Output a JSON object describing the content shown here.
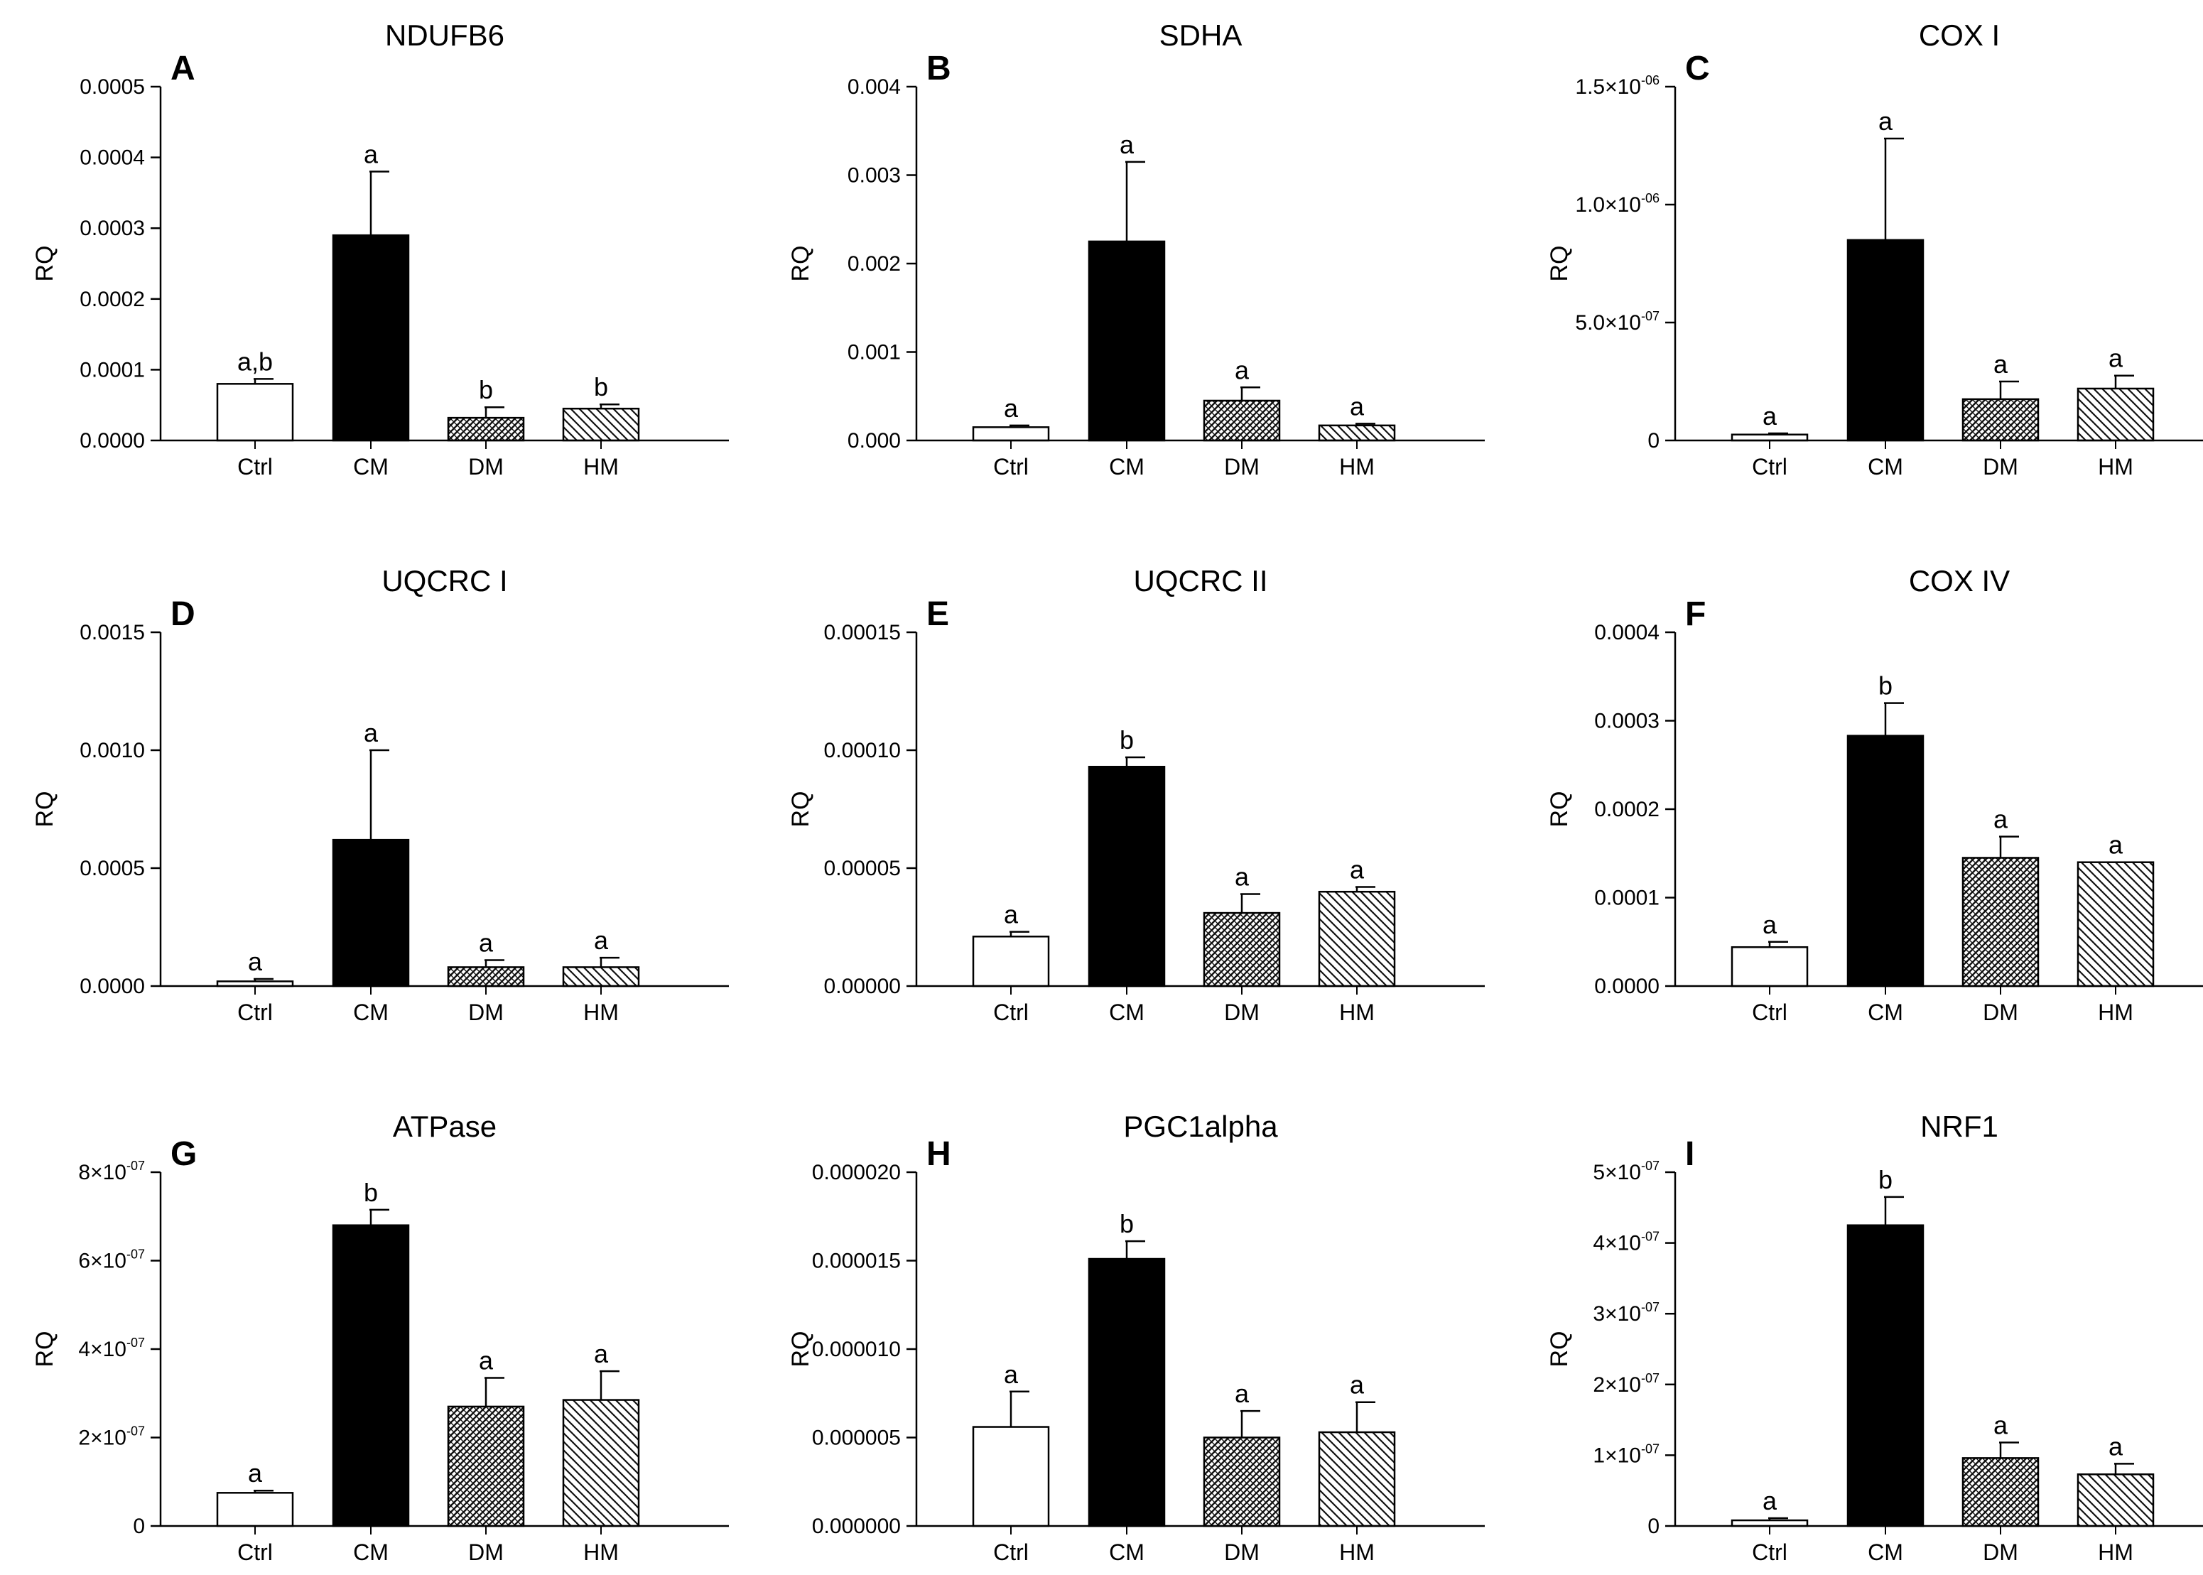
{
  "chart_data": [
    {
      "type": "bar",
      "panel": "A",
      "title": "NDUFB6",
      "ylabel": "RQ",
      "categories": [
        "Ctrl",
        "CM",
        "DM",
        "HM"
      ],
      "values": [
        8e-05,
        0.00029,
        3.2e-05,
        4.5e-05
      ],
      "errors": [
        7e-06,
        9e-05,
        1.5e-05,
        6e-06
      ],
      "labels": [
        "a,b",
        "a",
        "b",
        "b"
      ],
      "ylim": [
        0,
        0.0005
      ],
      "yticks": [
        0,
        0.0001,
        0.0002,
        0.0003,
        0.0004,
        0.0005
      ],
      "ytick_labels": [
        "0.0000",
        "0.0001",
        "0.0002",
        "0.0003",
        "0.0004",
        "0.0005"
      ]
    },
    {
      "type": "bar",
      "panel": "B",
      "title": "SDHA",
      "ylabel": "RQ",
      "categories": [
        "Ctrl",
        "CM",
        "DM",
        "HM"
      ],
      "values": [
        0.00015,
        0.00225,
        0.00045,
        0.00017
      ],
      "errors": [
        2e-05,
        0.0009,
        0.00015,
        2e-05
      ],
      "labels": [
        "a",
        "a",
        "a",
        "a"
      ],
      "ylim": [
        0,
        0.004
      ],
      "yticks": [
        0,
        0.001,
        0.002,
        0.003,
        0.004
      ],
      "ytick_labels": [
        "0.000",
        "0.001",
        "0.002",
        "0.003",
        "0.004"
      ]
    },
    {
      "type": "bar",
      "panel": "C",
      "title": "COX I",
      "ylabel": "RQ",
      "categories": [
        "Ctrl",
        "CM",
        "DM",
        "HM"
      ],
      "values": [
        2.5e-08,
        8.5e-07,
        1.75e-07,
        2.2e-07
      ],
      "errors": [
        5e-09,
        4.3e-07,
        7.5e-08,
        5.5e-08
      ],
      "labels": [
        "a",
        "a",
        "a",
        "a"
      ],
      "ylim": [
        0,
        1.5e-06
      ],
      "yticks": [
        0,
        5e-07,
        1e-06,
        1.5e-06
      ],
      "ytick_labels": [
        {
          "base": "0",
          "exp": ""
        },
        {
          "base": "5.0×10",
          "exp": "-07"
        },
        {
          "base": "1.0×10",
          "exp": "-06"
        },
        {
          "base": "1.5×10",
          "exp": "-06"
        }
      ]
    },
    {
      "type": "bar",
      "panel": "D",
      "title": "UQCRC I",
      "ylabel": "RQ",
      "categories": [
        "Ctrl",
        "CM",
        "DM",
        "HM"
      ],
      "values": [
        2e-05,
        0.00062,
        8e-05,
        8e-05
      ],
      "errors": [
        1e-05,
        0.00038,
        3e-05,
        4e-05
      ],
      "labels": [
        "a",
        "a",
        "a",
        "a"
      ],
      "ylim": [
        0,
        0.0015
      ],
      "yticks": [
        0,
        0.0005,
        0.001,
        0.0015
      ],
      "ytick_labels": [
        "0.0000",
        "0.0005",
        "0.0010",
        "0.0015"
      ]
    },
    {
      "type": "bar",
      "panel": "E",
      "title": "UQCRC II",
      "ylabel": "RQ",
      "categories": [
        "Ctrl",
        "CM",
        "DM",
        "HM"
      ],
      "values": [
        2.1e-05,
        9.3e-05,
        3.1e-05,
        4e-05
      ],
      "errors": [
        2e-06,
        4e-06,
        8e-06,
        2e-06
      ],
      "labels": [
        "a",
        "b",
        "a",
        "a"
      ],
      "ylim": [
        0,
        0.00015
      ],
      "yticks": [
        0,
        5e-05,
        0.0001,
        0.00015
      ],
      "ytick_labels": [
        "0.00000",
        "0.00005",
        "0.00010",
        "0.00015"
      ]
    },
    {
      "type": "bar",
      "panel": "F",
      "title": "COX IV",
      "ylabel": "RQ",
      "categories": [
        "Ctrl",
        "CM",
        "DM",
        "HM"
      ],
      "values": [
        4.4e-05,
        0.000283,
        0.000145,
        0.00014
      ],
      "errors": [
        6e-06,
        3.7e-05,
        2.4e-05,
        0
      ],
      "labels": [
        "a",
        "b",
        "a",
        "a"
      ],
      "ylim": [
        0,
        0.0004
      ],
      "yticks": [
        0,
        0.0001,
        0.0002,
        0.0003,
        0.0004
      ],
      "ytick_labels": [
        "0.0000",
        "0.0001",
        "0.0002",
        "0.0003",
        "0.0004"
      ]
    },
    {
      "type": "bar",
      "panel": "G",
      "title": "ATPase",
      "ylabel": "RQ",
      "categories": [
        "Ctrl",
        "CM",
        "DM",
        "HM"
      ],
      "values": [
        7.5e-08,
        6.8e-07,
        2.7e-07,
        2.85e-07
      ],
      "errors": [
        5e-09,
        3.5e-08,
        6.5e-08,
        6.5e-08
      ],
      "labels": [
        "a",
        "b",
        "a",
        "a"
      ],
      "ylim": [
        0,
        8e-07
      ],
      "yticks": [
        0,
        2e-07,
        4e-07,
        6e-07,
        8e-07
      ],
      "ytick_labels": [
        {
          "base": "0",
          "exp": ""
        },
        {
          "base": "2×10",
          "exp": "-07"
        },
        {
          "base": "4×10",
          "exp": "-07"
        },
        {
          "base": "6×10",
          "exp": "-07"
        },
        {
          "base": "8×10",
          "exp": "-07"
        }
      ]
    },
    {
      "type": "bar",
      "panel": "H",
      "title": "PGC1alpha",
      "ylabel": "RQ",
      "categories": [
        "Ctrl",
        "CM",
        "DM",
        "HM"
      ],
      "values": [
        5.6e-06,
        1.51e-05,
        5e-06,
        5.3e-06
      ],
      "errors": [
        2e-06,
        1e-06,
        1.5e-06,
        1.7e-06
      ],
      "labels": [
        "a",
        "b",
        "a",
        "a"
      ],
      "ylim": [
        0,
        2e-05
      ],
      "yticks": [
        0,
        5e-06,
        1e-05,
        1.5e-05,
        2e-05
      ],
      "ytick_labels": [
        "0.000000",
        "0.000005",
        "0.000010",
        "0.000015",
        "0.000020"
      ]
    },
    {
      "type": "bar",
      "panel": "I",
      "title": "NRF1",
      "ylabel": "RQ",
      "categories": [
        "Ctrl",
        "CM",
        "DM",
        "HM"
      ],
      "values": [
        8e-09,
        4.25e-07,
        9.6e-08,
        7.3e-08
      ],
      "errors": [
        3e-09,
        4e-08,
        2.2e-08,
        1.5e-08
      ],
      "labels": [
        "a",
        "b",
        "a",
        "a"
      ],
      "ylim": [
        0,
        5e-07
      ],
      "yticks": [
        0,
        1e-07,
        2e-07,
        3e-07,
        4e-07,
        5e-07
      ],
      "ytick_labels": [
        {
          "base": "0",
          "exp": ""
        },
        {
          "base": "1×10",
          "exp": "-07"
        },
        {
          "base": "2×10",
          "exp": "-07"
        },
        {
          "base": "3×10",
          "exp": "-07"
        },
        {
          "base": "4×10",
          "exp": "-07"
        },
        {
          "base": "5×10",
          "exp": "-07"
        }
      ]
    }
  ],
  "fills": {
    "Ctrl": "#ffffff",
    "CM": "#000000",
    "DM": "crosshatch",
    "HM": "diagonal"
  }
}
